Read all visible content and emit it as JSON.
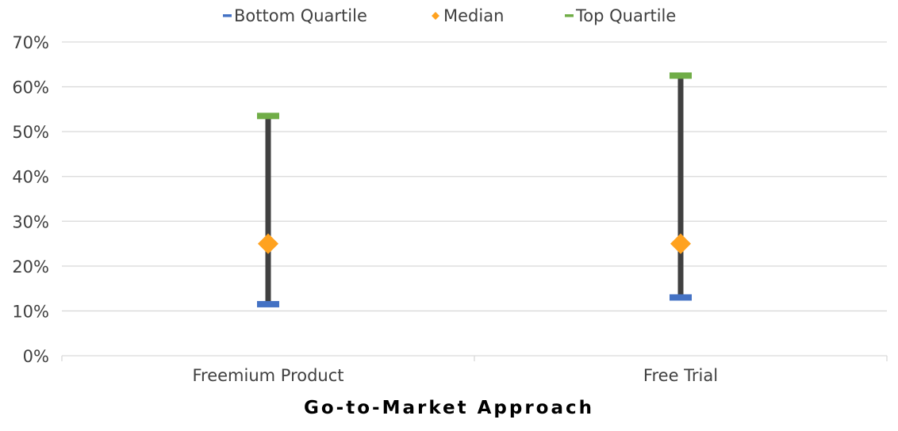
{
  "chart_data": {
    "type": "error-bar",
    "categories": [
      "Freemium Product",
      "Free Trial"
    ],
    "series": [
      {
        "name": "Bottom Quartile",
        "values": [
          0.115,
          0.13
        ],
        "color": "#4472C4",
        "marker": "dash"
      },
      {
        "name": "Median",
        "values": [
          0.25,
          0.25
        ],
        "color": "#FFA21F",
        "marker": "diamond"
      },
      {
        "name": "Top Quartile",
        "values": [
          0.535,
          0.625
        ],
        "color": "#70AD47",
        "marker": "dash"
      }
    ],
    "range_line_color": "#404040",
    "xlabel": "Go-to-Market Approach",
    "ylabel": "",
    "ylim": [
      0,
      0.7
    ],
    "yticks": [
      "0%",
      "10%",
      "20%",
      "30%",
      "40%",
      "50%",
      "60%",
      "70%"
    ],
    "grid": true,
    "legend_position": "top"
  }
}
